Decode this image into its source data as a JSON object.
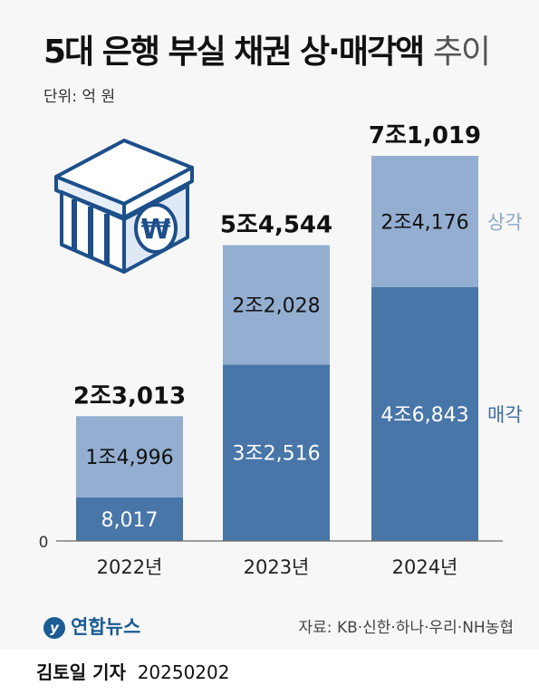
{
  "title_main": "5대 은행 부실 채권 상·매각액",
  "title_sub": "추이",
  "unit": "단위: 억 원",
  "colors": {
    "sale": "#4876a8",
    "writeoff": "#93aed0",
    "sale_text": "#ffffff",
    "writeoff_text": "#111111",
    "legend_sale": "#3c6fa0",
    "legend_writeoff": "#8ba7c8"
  },
  "chart_data": {
    "type": "bar",
    "stacked": true,
    "categories": [
      "2022년",
      "2023년",
      "2024년"
    ],
    "series": [
      {
        "name": "매각",
        "values": [
          8017,
          32516,
          46843
        ],
        "labels": [
          "8,017",
          "3조2,516",
          "4조6,843"
        ]
      },
      {
        "name": "상각",
        "values": [
          14996,
          22028,
          24176
        ],
        "labels": [
          "1조4,996",
          "2조2,028",
          "2조4,176"
        ]
      }
    ],
    "totals": [
      23013,
      54544,
      71019
    ],
    "total_labels": [
      "2조3,013",
      "5조4,544",
      "7조1,019"
    ],
    "ylim": [
      0,
      71019
    ],
    "y_tick_label": "0",
    "legend": "right"
  },
  "legend": {
    "writeoff": "상각",
    "sale": "매각"
  },
  "footer": {
    "logo": "연합뉴스",
    "source": "자료: KB·신한·하나·우리·NH농협"
  },
  "reporter": {
    "name": "김토일 기자",
    "date": "20250202"
  }
}
